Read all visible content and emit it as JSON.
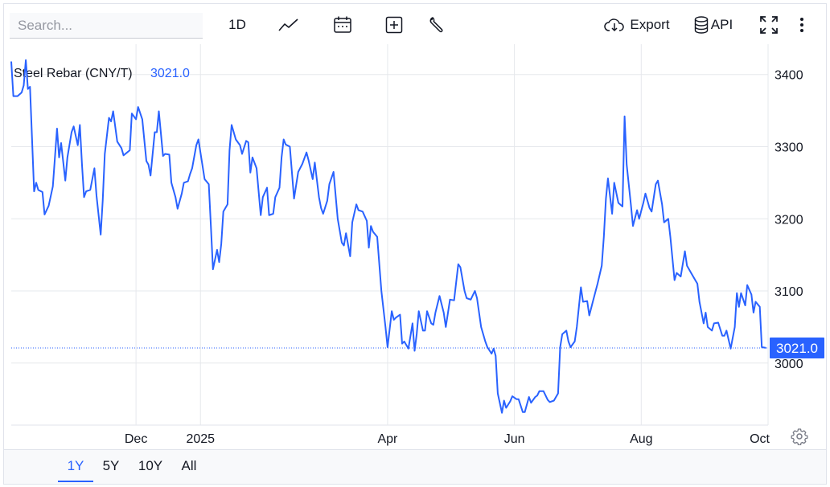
{
  "search": {
    "placeholder": "Search..."
  },
  "toolbar": {
    "interval_label": "1D",
    "export_label": "Export",
    "api_label": "API",
    "icons": [
      "line-chart-icon",
      "calendar-icon",
      "add-indicator-icon",
      "wrench-icon",
      "cloud-download-icon",
      "database-icon",
      "fullscreen-icon",
      "more-vertical-icon"
    ]
  },
  "colors": {
    "accent": "#2962ff",
    "line": "#2962ff",
    "grid": "#e6e8ec",
    "text": "#131722"
  },
  "range_buttons": [
    {
      "label": "1Y",
      "active": true
    },
    {
      "label": "5Y",
      "active": false
    },
    {
      "label": "10Y",
      "active": false
    },
    {
      "label": "All",
      "active": false
    }
  ],
  "chart_data": {
    "type": "line",
    "title": "Steel Rebar (CNY/T)",
    "last_value_label": "3021.0",
    "last_value": 3021.0,
    "xlabel": "",
    "ylabel": "",
    "ylim": [
      2914,
      3442
    ],
    "yticks": [
      3000,
      3100,
      3200,
      3300,
      3400
    ],
    "xticks": [
      {
        "label": "Dec",
        "date": "2024-12-01"
      },
      {
        "label": "2025",
        "date": "2025-01-01"
      },
      {
        "label": "Apr",
        "date": "2025-04-01"
      },
      {
        "label": "Jun",
        "date": "2025-06-01"
      },
      {
        "label": "Aug",
        "date": "2025-08-01"
      },
      {
        "label": "Oct",
        "date": "2025-10-01"
      }
    ],
    "xlim": [
      "2024-10-02",
      "2025-10-01"
    ],
    "grid": true,
    "series": [
      {
        "values": [
          [
            "2024-10-02",
            3418
          ],
          [
            "2024-10-03",
            3370
          ],
          [
            "2024-10-05",
            3370
          ],
          [
            "2024-10-07",
            3375
          ],
          [
            "2024-10-08",
            3385
          ],
          [
            "2024-10-09",
            3420
          ],
          [
            "2024-10-10",
            3380
          ],
          [
            "2024-10-11",
            3383
          ],
          [
            "2024-10-13",
            3238
          ],
          [
            "2024-10-14",
            3250
          ],
          [
            "2024-10-15",
            3240
          ],
          [
            "2024-10-17",
            3237
          ],
          [
            "2024-10-18",
            3206
          ],
          [
            "2024-10-20",
            3218
          ],
          [
            "2024-10-22",
            3245
          ],
          [
            "2024-10-24",
            3325
          ],
          [
            "2024-10-25",
            3285
          ],
          [
            "2024-10-26",
            3305
          ],
          [
            "2024-10-28",
            3253
          ],
          [
            "2024-10-29",
            3285
          ],
          [
            "2024-10-31",
            3320
          ],
          [
            "2024-11-01",
            3328
          ],
          [
            "2024-11-03",
            3302
          ],
          [
            "2024-11-04",
            3330
          ],
          [
            "2024-11-05",
            3276
          ],
          [
            "2024-11-06",
            3230
          ],
          [
            "2024-11-07",
            3238
          ],
          [
            "2024-11-09",
            3240
          ],
          [
            "2024-11-11",
            3270
          ],
          [
            "2024-11-12",
            3232
          ],
          [
            "2024-11-14",
            3178
          ],
          [
            "2024-11-15",
            3225
          ],
          [
            "2024-11-16",
            3290
          ],
          [
            "2024-11-18",
            3340
          ],
          [
            "2024-11-19",
            3335
          ],
          [
            "2024-11-20",
            3349
          ],
          [
            "2024-11-22",
            3307
          ],
          [
            "2024-11-24",
            3298
          ],
          [
            "2024-11-25",
            3288
          ],
          [
            "2024-11-28",
            3295
          ],
          [
            "2024-11-29",
            3346
          ],
          [
            "2024-12-01",
            3338
          ],
          [
            "2024-12-02",
            3355
          ],
          [
            "2024-12-04",
            3338
          ],
          [
            "2024-12-06",
            3280
          ],
          [
            "2024-12-07",
            3275
          ],
          [
            "2024-12-08",
            3260
          ],
          [
            "2024-12-10",
            3320
          ],
          [
            "2024-12-11",
            3320
          ],
          [
            "2024-12-12",
            3349
          ],
          [
            "2024-12-14",
            3287
          ],
          [
            "2024-12-15",
            3290
          ],
          [
            "2024-12-17",
            3289
          ],
          [
            "2024-12-18",
            3250
          ],
          [
            "2024-12-20",
            3230
          ],
          [
            "2024-12-21",
            3214
          ],
          [
            "2024-12-23",
            3235
          ],
          [
            "2024-12-24",
            3250
          ],
          [
            "2024-12-26",
            3252
          ],
          [
            "2024-12-27",
            3262
          ],
          [
            "2024-12-28",
            3270
          ],
          [
            "2024-12-30",
            3302
          ],
          [
            "2024-12-31",
            3310
          ],
          [
            "2025-01-03",
            3255
          ],
          [
            "2025-01-05",
            3248
          ],
          [
            "2025-01-06",
            3190
          ],
          [
            "2025-01-07",
            3130
          ],
          [
            "2025-01-09",
            3157
          ],
          [
            "2025-01-10",
            3140
          ],
          [
            "2025-01-11",
            3165
          ],
          [
            "2025-01-12",
            3210
          ],
          [
            "2025-01-14",
            3220
          ],
          [
            "2025-01-15",
            3295
          ],
          [
            "2025-01-16",
            3330
          ],
          [
            "2025-01-18",
            3310
          ],
          [
            "2025-01-20",
            3302
          ],
          [
            "2025-01-21",
            3290
          ],
          [
            "2025-01-23",
            3308
          ],
          [
            "2025-01-24",
            3306
          ],
          [
            "2025-01-25",
            3264
          ],
          [
            "2025-01-26",
            3285
          ],
          [
            "2025-01-28",
            3270
          ],
          [
            "2025-01-30",
            3205
          ],
          [
            "2025-01-31",
            3230
          ],
          [
            "2025-02-02",
            3243
          ],
          [
            "2025-02-03",
            3205
          ],
          [
            "2025-02-05",
            3207
          ],
          [
            "2025-02-06",
            3230
          ],
          [
            "2025-02-08",
            3243
          ],
          [
            "2025-02-09",
            3285
          ],
          [
            "2025-02-10",
            3310
          ],
          [
            "2025-02-11",
            3303
          ],
          [
            "2025-02-13",
            3300
          ],
          [
            "2025-02-15",
            3228
          ],
          [
            "2025-02-17",
            3265
          ],
          [
            "2025-02-19",
            3276
          ],
          [
            "2025-02-21",
            3292
          ],
          [
            "2025-02-22",
            3281
          ],
          [
            "2025-02-24",
            3255
          ],
          [
            "2025-02-25",
            3278
          ],
          [
            "2025-02-27",
            3230
          ],
          [
            "2025-02-28",
            3215
          ],
          [
            "2025-03-01",
            3207
          ],
          [
            "2025-03-03",
            3225
          ],
          [
            "2025-03-04",
            3248
          ],
          [
            "2025-03-06",
            3265
          ],
          [
            "2025-03-08",
            3200
          ],
          [
            "2025-03-10",
            3167
          ],
          [
            "2025-03-11",
            3163
          ],
          [
            "2025-03-12",
            3180
          ],
          [
            "2025-03-14",
            3148
          ],
          [
            "2025-03-15",
            3195
          ],
          [
            "2025-03-17",
            3220
          ],
          [
            "2025-03-18",
            3212
          ],
          [
            "2025-03-20",
            3210
          ],
          [
            "2025-03-22",
            3197
          ],
          [
            "2025-03-23",
            3160
          ],
          [
            "2025-03-24",
            3190
          ],
          [
            "2025-03-25",
            3182
          ],
          [
            "2025-03-27",
            3175
          ],
          [
            "2025-03-29",
            3100
          ],
          [
            "2025-03-31",
            3050
          ],
          [
            "2025-04-01",
            3022
          ],
          [
            "2025-04-03",
            3072
          ],
          [
            "2025-04-04",
            3060
          ],
          [
            "2025-04-05",
            3063
          ],
          [
            "2025-04-07",
            3067
          ],
          [
            "2025-04-08",
            3027
          ],
          [
            "2025-04-09",
            3030
          ],
          [
            "2025-04-11",
            3020
          ],
          [
            "2025-04-13",
            3055
          ],
          [
            "2025-04-14",
            3017
          ],
          [
            "2025-04-15",
            3040
          ],
          [
            "2025-04-16",
            3072
          ],
          [
            "2025-04-18",
            3045
          ],
          [
            "2025-04-19",
            3045
          ],
          [
            "2025-04-20",
            3072
          ],
          [
            "2025-04-22",
            3055
          ],
          [
            "2025-04-23",
            3053
          ],
          [
            "2025-04-24",
            3070
          ],
          [
            "2025-04-26",
            3093
          ],
          [
            "2025-04-28",
            3070
          ],
          [
            "2025-04-29",
            3050
          ],
          [
            "2025-05-01",
            3088
          ],
          [
            "2025-05-03",
            3087
          ],
          [
            "2025-05-05",
            3137
          ],
          [
            "2025-05-06",
            3133
          ],
          [
            "2025-05-08",
            3100
          ],
          [
            "2025-05-09",
            3090
          ],
          [
            "2025-05-11",
            3088
          ],
          [
            "2025-05-13",
            3100
          ],
          [
            "2025-05-14",
            3090
          ],
          [
            "2025-05-16",
            3050
          ],
          [
            "2025-05-18",
            3030
          ],
          [
            "2025-05-19",
            3022
          ],
          [
            "2025-05-21",
            3013
          ],
          [
            "2025-05-22",
            3020
          ],
          [
            "2025-05-23",
            3010
          ],
          [
            "2025-05-24",
            2958
          ],
          [
            "2025-05-26",
            2931
          ],
          [
            "2025-05-27",
            2948
          ],
          [
            "2025-05-28",
            2938
          ],
          [
            "2025-05-30",
            2947
          ],
          [
            "2025-05-31",
            2954
          ],
          [
            "2025-06-02",
            2950
          ],
          [
            "2025-06-03",
            2950
          ],
          [
            "2025-06-05",
            2932
          ],
          [
            "2025-06-06",
            2932
          ],
          [
            "2025-06-08",
            2953
          ],
          [
            "2025-06-09",
            2945
          ],
          [
            "2025-06-11",
            2953
          ],
          [
            "2025-06-12",
            2955
          ],
          [
            "2025-06-13",
            2961
          ],
          [
            "2025-06-15",
            2961
          ],
          [
            "2025-06-17",
            2949
          ],
          [
            "2025-06-18",
            2946
          ],
          [
            "2025-06-20",
            2948
          ],
          [
            "2025-06-22",
            2958
          ],
          [
            "2025-06-23",
            3022
          ],
          [
            "2025-06-24",
            3040
          ],
          [
            "2025-06-26",
            3045
          ],
          [
            "2025-06-27",
            3030
          ],
          [
            "2025-06-28",
            3022
          ],
          [
            "2025-06-30",
            3030
          ],
          [
            "2025-07-01",
            3050
          ],
          [
            "2025-07-03",
            3105
          ],
          [
            "2025-07-04",
            3085
          ],
          [
            "2025-07-06",
            3086
          ],
          [
            "2025-07-07",
            3066
          ],
          [
            "2025-07-09",
            3088
          ],
          [
            "2025-07-11",
            3110
          ],
          [
            "2025-07-13",
            3135
          ],
          [
            "2025-07-14",
            3175
          ],
          [
            "2025-07-15",
            3228
          ],
          [
            "2025-07-16",
            3256
          ],
          [
            "2025-07-18",
            3207
          ],
          [
            "2025-07-19",
            3250
          ],
          [
            "2025-07-21",
            3222
          ],
          [
            "2025-07-23",
            3217
          ],
          [
            "2025-07-24",
            3342
          ],
          [
            "2025-07-25",
            3275
          ],
          [
            "2025-07-27",
            3220
          ],
          [
            "2025-07-28",
            3190
          ],
          [
            "2025-07-30",
            3212
          ],
          [
            "2025-07-31",
            3200
          ],
          [
            "2025-08-02",
            3222
          ],
          [
            "2025-08-03",
            3235
          ],
          [
            "2025-08-05",
            3215
          ],
          [
            "2025-08-06",
            3210
          ],
          [
            "2025-08-08",
            3248
          ],
          [
            "2025-08-09",
            3253
          ],
          [
            "2025-08-11",
            3220
          ],
          [
            "2025-08-12",
            3195
          ],
          [
            "2025-08-14",
            3200
          ],
          [
            "2025-08-15",
            3175
          ],
          [
            "2025-08-17",
            3115
          ],
          [
            "2025-08-18",
            3125
          ],
          [
            "2025-08-20",
            3120
          ],
          [
            "2025-08-22",
            3155
          ],
          [
            "2025-08-23",
            3135
          ],
          [
            "2025-08-25",
            3125
          ],
          [
            "2025-08-27",
            3115
          ],
          [
            "2025-08-28",
            3110
          ],
          [
            "2025-08-29",
            3085
          ],
          [
            "2025-08-31",
            3055
          ],
          [
            "2025-09-01",
            3070
          ],
          [
            "2025-09-02",
            3050
          ],
          [
            "2025-09-04",
            3045
          ],
          [
            "2025-09-05",
            3055
          ],
          [
            "2025-09-07",
            3056
          ],
          [
            "2025-09-09",
            3038
          ],
          [
            "2025-09-10",
            3038
          ],
          [
            "2025-09-11",
            3045
          ],
          [
            "2025-09-13",
            3020
          ],
          [
            "2025-09-15",
            3050
          ],
          [
            "2025-09-16",
            3097
          ],
          [
            "2025-09-17",
            3078
          ],
          [
            "2025-09-18",
            3097
          ],
          [
            "2025-09-20",
            3080
          ],
          [
            "2025-09-21",
            3108
          ],
          [
            "2025-09-23",
            3095
          ],
          [
            "2025-09-24",
            3070
          ],
          [
            "2025-09-25",
            3085
          ],
          [
            "2025-09-27",
            3078
          ],
          [
            "2025-09-28",
            3022
          ],
          [
            "2025-09-30",
            3021
          ]
        ]
      }
    ]
  }
}
